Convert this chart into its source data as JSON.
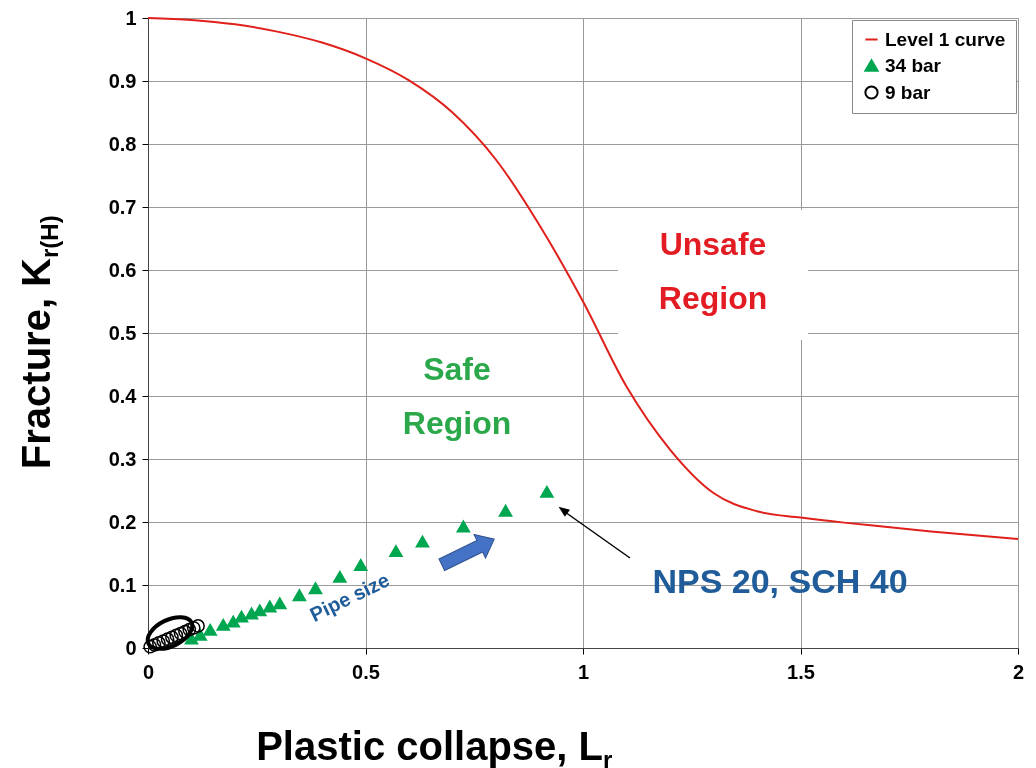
{
  "chart_data": {
    "type": "scatter",
    "xlabel": "Plastic collapse, L$_{r}$",
    "ylabel": "Fracture, K$_{r(H)}$",
    "xlim": [
      0,
      2
    ],
    "ylim": [
      0,
      1
    ],
    "xticks": [
      0,
      0.5,
      1,
      1.5,
      2
    ],
    "yticks": [
      0,
      0.1,
      0.2,
      0.3,
      0.4,
      0.5,
      0.6,
      0.7,
      0.8,
      0.9,
      1
    ],
    "grid": true,
    "legend": "top right",
    "series": [
      {
        "name": "Level 1 curve",
        "type": "line",
        "marker": "none",
        "color": "#e0201b",
        "x": [
          0,
          0.1,
          0.2,
          0.3,
          0.4,
          0.5,
          0.6,
          0.7,
          0.8,
          0.9,
          1.0,
          1.1,
          1.2,
          1.3,
          1.4,
          1.5,
          1.6,
          1.7,
          1.8,
          1.9,
          2.0
        ],
        "values": [
          1,
          0.997,
          0.99,
          0.978,
          0.961,
          0.936,
          0.901,
          0.85,
          0.775,
          0.671,
          0.55,
          0.415,
          0.315,
          0.246,
          0.217,
          0.207,
          0.199,
          0.192,
          0.185,
          0.179,
          0.173
        ]
      },
      {
        "name": "34 bar",
        "type": "scatter",
        "marker": "triangle",
        "color": "#00a650",
        "x": [
          0.917,
          0.822,
          0.725,
          0.631,
          0.57,
          0.489,
          0.441,
          0.385,
          0.348,
          0.303,
          0.28,
          0.257,
          0.238,
          0.215,
          0.196,
          0.173,
          0.143,
          0.12,
          0.1
        ],
        "values": [
          0.248,
          0.218,
          0.193,
          0.169,
          0.154,
          0.132,
          0.113,
          0.095,
          0.084,
          0.071,
          0.066,
          0.06,
          0.055,
          0.05,
          0.042,
          0.037,
          0.029,
          0.021,
          0.015
        ]
      },
      {
        "name": "9 bar",
        "type": "scatter",
        "marker": "circle",
        "color": "#000000",
        "x": [
          0.005,
          0.015,
          0.025,
          0.035,
          0.045,
          0.055,
          0.065,
          0.075,
          0.085,
          0.095,
          0.105,
          0.115
        ],
        "values": [
          0.002,
          0.005,
          0.008,
          0.011,
          0.014,
          0.017,
          0.02,
          0.023,
          0.026,
          0.029,
          0.032,
          0.035
        ]
      }
    ],
    "annotations": [
      "Unsafe Region",
      "Safe Region",
      "Pipe size",
      "NPS 20, SCH 40"
    ]
  }
}
